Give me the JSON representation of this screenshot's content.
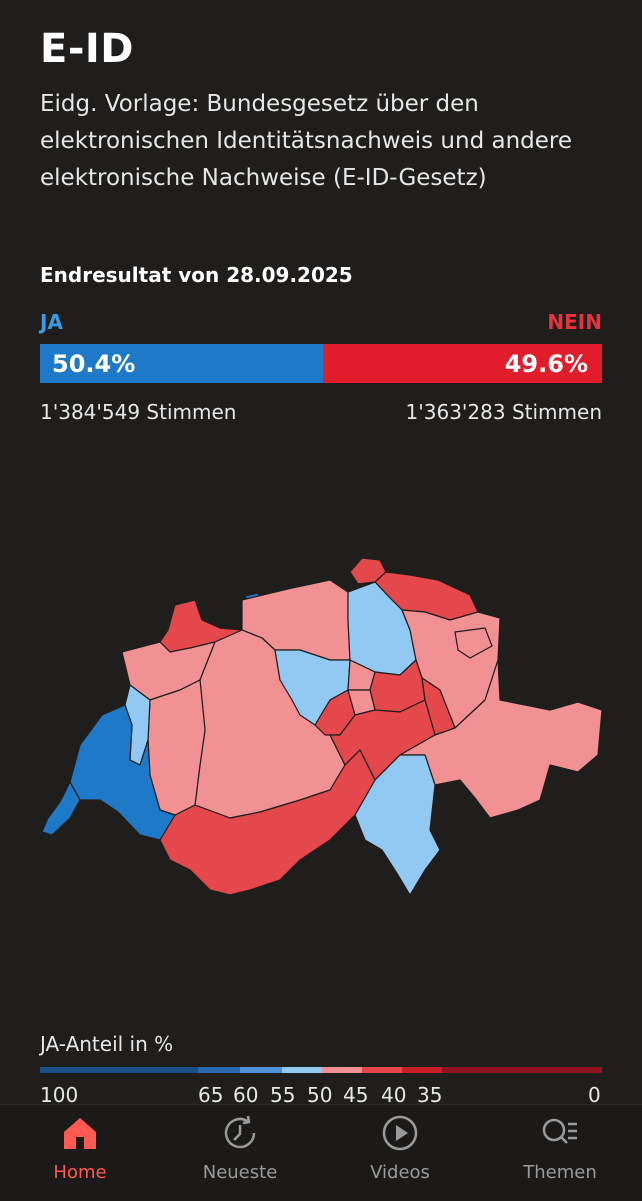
{
  "header": {
    "title": "E-ID",
    "subtitle": "Eidg. Vorlage: Bundesgesetz über den elektronischen Identitätsnachweis und andere elektronische Nachweise (E-ID-Gesetz)"
  },
  "result": {
    "date_label": "Endresultat von 28.09.2025",
    "ja_label": "JA",
    "nein_label": "NEIN",
    "ja_percent": "50.4%",
    "nein_percent": "49.6%",
    "ja_share": 50.4,
    "ja_votes": "1'384'549 Stimmen",
    "nein_votes": "1'363'283 Stimmen"
  },
  "legend": {
    "title": "JA-Anteil in %",
    "ticks": [
      "100",
      "65",
      "60",
      "55",
      "50",
      "45",
      "40",
      "35",
      "0"
    ]
  },
  "colors": {
    "ja_strong": "#1f79c9",
    "ja_light": "#92c9f3",
    "nein_light": "#f29194",
    "nein_medium": "#e4474c",
    "nein_strong": "#e11d2b",
    "active_nav": "#ff5a52"
  },
  "nav": {
    "items": [
      {
        "label": "Home",
        "icon": "home-icon"
      },
      {
        "label": "Neueste",
        "icon": "clock-icon"
      },
      {
        "label": "Videos",
        "icon": "play-icon"
      },
      {
        "label": "Themen",
        "icon": "topics-icon"
      }
    ]
  }
}
